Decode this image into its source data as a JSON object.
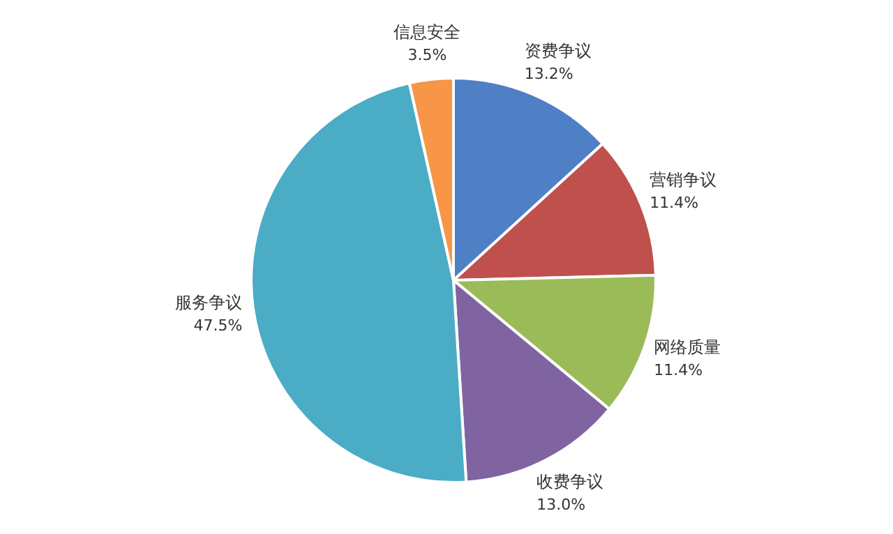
{
  "chart_data": {
    "type": "pie",
    "categories": [
      "资费争议",
      "营销争议",
      "网络质量",
      "收费争议",
      "服务争议",
      "信息安全"
    ],
    "values": [
      13.2,
      11.4,
      11.4,
      13.0,
      47.5,
      3.5
    ],
    "value_labels": [
      "13.2%",
      "11.4%",
      "11.4%",
      "13.0%",
      "47.5%",
      "3.5%"
    ],
    "colors": [
      "#4f7fc4",
      "#c0504d",
      "#9bbb59",
      "#8064a2",
      "#4bacc6",
      "#f79646"
    ],
    "legend": false
  }
}
